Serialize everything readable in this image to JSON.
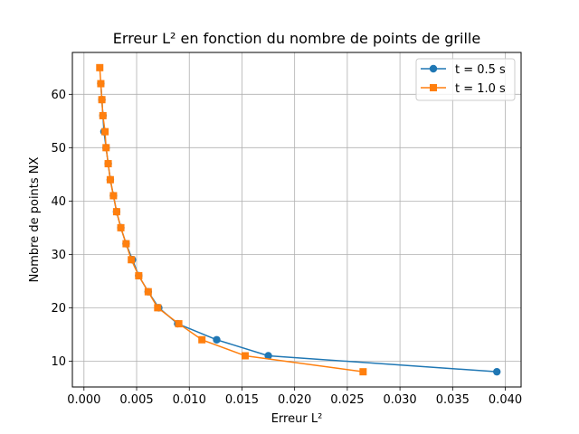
{
  "chart_data": {
    "type": "line",
    "title": "Erreur L² en fonction du nombre de points de grille",
    "xlabel": "Erreur L²",
    "ylabel": "Nombre de points NX",
    "xlim": [
      -0.0011,
      0.0415
    ],
    "ylim": [
      5.15,
      67.85
    ],
    "xticks": [
      "0.000",
      "0.005",
      "0.010",
      "0.015",
      "0.020",
      "0.025",
      "0.030",
      "0.035",
      "0.040"
    ],
    "xtick_values": [
      0.0,
      0.005,
      0.01,
      0.015,
      0.02,
      0.025,
      0.03,
      0.035,
      0.04
    ],
    "yticks": [
      "10",
      "20",
      "30",
      "40",
      "50",
      "60"
    ],
    "ytick_values": [
      10,
      20,
      30,
      40,
      50,
      60
    ],
    "grid": true,
    "legend_position": "top-right",
    "series": [
      {
        "name": "t = 0.5 s",
        "color": "#1f77b4",
        "marker": "circle",
        "x": [
          0.0392,
          0.0175,
          0.0126,
          0.0089,
          0.0071,
          0.0061,
          0.0052,
          0.0046,
          0.004,
          0.0035,
          0.0031,
          0.0028,
          0.0025,
          0.0023,
          0.0021,
          0.0019,
          0.0018,
          0.0017,
          0.0016
        ],
        "y": [
          8,
          11,
          14,
          17,
          20,
          23,
          26,
          29,
          32,
          35,
          38,
          41,
          44,
          47,
          50,
          53,
          56,
          59,
          62
        ]
      },
      {
        "name": "t = 1.0 s",
        "color": "#ff7f0e",
        "marker": "square",
        "x": [
          0.0265,
          0.0153,
          0.0112,
          0.009,
          0.007,
          0.0061,
          0.0052,
          0.0045,
          0.004,
          0.0035,
          0.0031,
          0.0028,
          0.0025,
          0.0023,
          0.0021,
          0.002,
          0.0018,
          0.0017,
          0.0016,
          0.0015
        ],
        "y": [
          8,
          11,
          14,
          17,
          20,
          23,
          26,
          29,
          32,
          35,
          38,
          41,
          44,
          47,
          50,
          53,
          56,
          59,
          62,
          65
        ]
      }
    ]
  }
}
